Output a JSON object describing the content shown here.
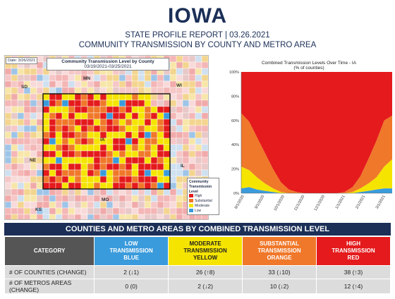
{
  "header": {
    "title": "IOWA",
    "subtitle1": "STATE PROFILE REPORT | 03.26.2021",
    "subtitle2": "COMMUNITY TRANSMISSION BY COUNTY AND METRO AREA"
  },
  "map": {
    "date_label": "Date: 3/26/2021",
    "title": "Community Transmission Level by County",
    "date_range": "03/19/2021-03/25/2021",
    "state_labels": [
      "MN",
      "WI",
      "SD",
      "IA",
      "NE",
      "IL",
      "MO",
      "KS"
    ],
    "legend_title": "Community Transmission Level",
    "legend_items": [
      {
        "label": "High",
        "color": "#e41a1c"
      },
      {
        "label": "Substantial",
        "color": "#f0782a"
      },
      {
        "label": "Moderate",
        "color": "#f5e400"
      },
      {
        "label": "Low",
        "color": "#3a9bdc"
      }
    ]
  },
  "chart_data": {
    "type": "area",
    "title": "Combined Transmission Levels Over Time - IA",
    "subtitle": "(% of counties)",
    "ylim": [
      0,
      100
    ],
    "y_ticks": [
      "0%",
      "20%",
      "40%",
      "60%",
      "80%",
      "100%"
    ],
    "x_ticks": [
      "8/1/2020",
      "9/1/2020",
      "10/1/2020",
      "11/1/2020",
      "12/1/2020",
      "1/1/2021",
      "2/1/2021",
      "3/1/2021"
    ],
    "series": [
      {
        "name": "Low",
        "color": "#3a9bdc",
        "values": [
          4,
          5,
          3,
          2,
          1,
          0,
          0,
          0,
          0,
          0,
          0,
          0,
          0,
          0,
          0,
          1,
          2,
          3,
          4,
          4
        ]
      },
      {
        "name": "Moderate",
        "color": "#f5e400",
        "values": [
          18,
          14,
          10,
          6,
          3,
          1,
          0,
          0,
          0,
          0,
          0,
          0,
          0,
          0,
          1,
          3,
          6,
          10,
          18,
          24
        ]
      },
      {
        "name": "Substantial",
        "color": "#f0782a",
        "values": [
          44,
          40,
          33,
          25,
          16,
          8,
          3,
          1,
          0,
          0,
          0,
          0,
          0,
          1,
          4,
          10,
          20,
          30,
          38,
          36
        ]
      },
      {
        "name": "High",
        "color": "#e41a1c",
        "values": [
          34,
          41,
          54,
          67,
          80,
          91,
          97,
          99,
          100,
          100,
          100,
          100,
          100,
          99,
          95,
          86,
          72,
          57,
          40,
          36
        ]
      }
    ]
  },
  "table": {
    "band": "COUNTIES AND METRO AREAS BY COMBINED TRANSMISSION LEVEL",
    "headers": {
      "category": "CATEGORY",
      "low": [
        "LOW",
        "TRANSMISSION",
        "BLUE"
      ],
      "moderate": [
        "MODERATE",
        "TRANSMISSION",
        "YELLOW"
      ],
      "substantial": [
        "SUBSTANTIAL",
        "TRANSMISSION",
        "ORANGE"
      ],
      "high": [
        "HIGH",
        "TRANSMISSION",
        "RED"
      ]
    },
    "rows": [
      {
        "label": "# OF COUNTIES (CHANGE)",
        "low": "2 (↓1)",
        "moderate": "26 (↑8)",
        "substantial": "33 (↓10)",
        "high": "38 (↑3)"
      },
      {
        "label": "# OF METROS AREAS (CHANGE)",
        "low": "0 (0)",
        "moderate": "2 (↓2)",
        "substantial": "10 (↓2)",
        "high": "12 (↑4)"
      }
    ]
  }
}
